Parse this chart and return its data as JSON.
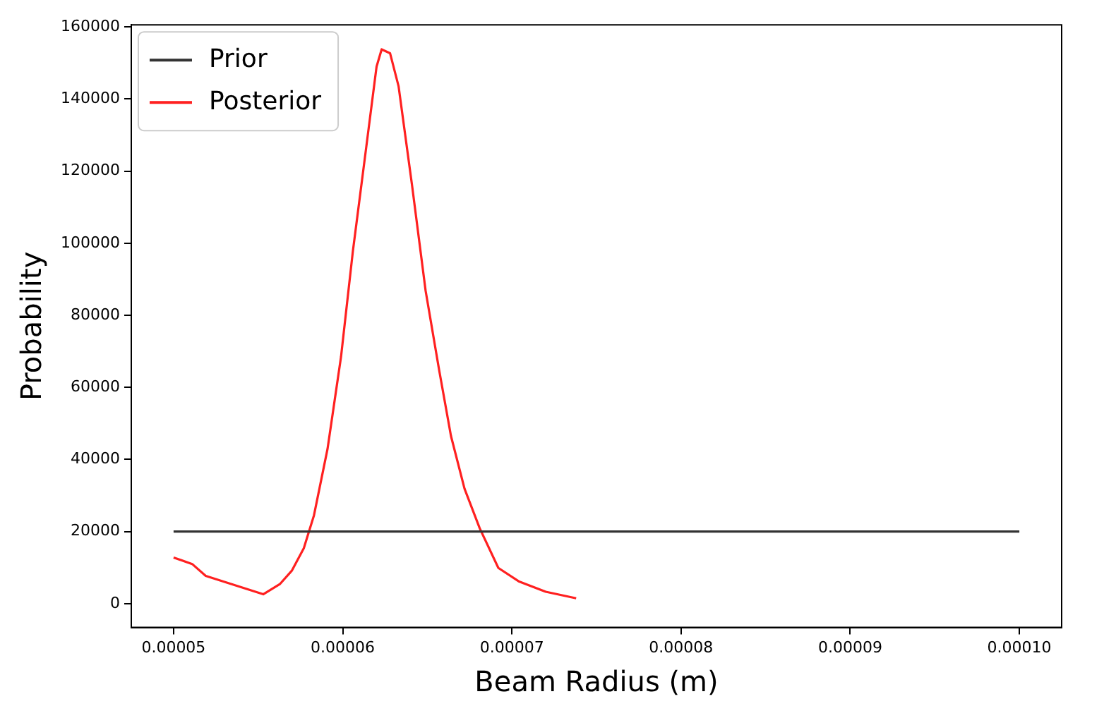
{
  "chart_data": {
    "type": "line",
    "xlabel": "Beam Radius (m)",
    "ylabel": "Probability",
    "xlim": [
      4.75e-05,
      0.0001025
    ],
    "ylim": [
      -6600,
      160600
    ],
    "xticks": [
      {
        "value": 5e-05,
        "label": "0.00005"
      },
      {
        "value": 6e-05,
        "label": "0.00006"
      },
      {
        "value": 7e-05,
        "label": "0.00007"
      },
      {
        "value": 8e-05,
        "label": "0.00008"
      },
      {
        "value": 9e-05,
        "label": "0.00009"
      },
      {
        "value": 0.0001,
        "label": "0.00010"
      }
    ],
    "yticks": [
      0,
      20000,
      40000,
      60000,
      80000,
      100000,
      120000,
      140000,
      160000
    ],
    "legend": "top left",
    "grid": false,
    "marker": "none",
    "line_style": "solid",
    "series": [
      {
        "name": "Prior",
        "color": "#333333",
        "x": [
          5e-05,
          0.0001
        ],
        "values": [
          20000,
          20000
        ]
      },
      {
        "name": "Posterior",
        "color": "#ff2020",
        "x": [
          5e-05,
          5.11e-05,
          5.19e-05,
          5.53e-05,
          5.63e-05,
          5.7e-05,
          5.77e-05,
          5.83e-05,
          5.91e-05,
          5.99e-05,
          6.06e-05,
          6.14e-05,
          6.2e-05,
          6.23e-05,
          6.28e-05,
          6.33e-05,
          6.41e-05,
          6.49e-05,
          6.57e-05,
          6.64e-05,
          6.72e-05,
          6.81e-05,
          6.92e-05,
          7.04e-05,
          7.2e-05,
          7.38e-05
        ],
        "values": [
          12800,
          11000,
          7700,
          2600,
          5500,
          9200,
          15400,
          24500,
          42900,
          68500,
          97800,
          127000,
          149000,
          153800,
          152700,
          143600,
          116000,
          86800,
          64800,
          46500,
          31900,
          20900,
          9900,
          6200,
          3300,
          1500
        ]
      }
    ]
  }
}
